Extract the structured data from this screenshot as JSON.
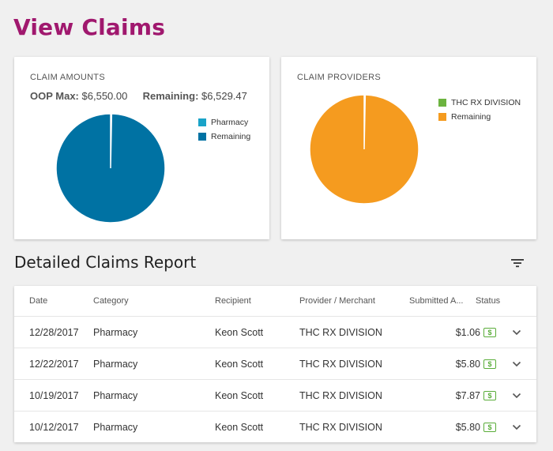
{
  "page": {
    "title": "View Claims"
  },
  "claim_amounts": {
    "label": "CLAIM AMOUNTS",
    "oop_label": "OOP Max:",
    "oop_value": "$6,550.00",
    "remaining_label": "Remaining:",
    "remaining_value": "$6,529.47",
    "legend": [
      {
        "label": "Pharmacy",
        "color": "#1aa3c8"
      },
      {
        "label": "Remaining",
        "color": "#0072a3"
      }
    ],
    "slices": [
      {
        "label": "Pharmacy",
        "value": 20.53,
        "color": "#1aa3c8"
      },
      {
        "label": "Remaining",
        "value": 6529.47,
        "color": "#0072a3"
      }
    ]
  },
  "claim_providers": {
    "label": "CLAIM PROVIDERS",
    "legend": [
      {
        "label": "THC RX DIVISION",
        "color": "#6cb33f"
      },
      {
        "label": "Remaining",
        "color": "#f59b1f"
      }
    ],
    "slices": [
      {
        "label": "THC RX DIVISION",
        "value": 20.53,
        "color": "#6cb33f"
      },
      {
        "label": "Remaining",
        "value": 6529.47,
        "color": "#f59b1f"
      }
    ]
  },
  "report": {
    "title": "Detailed Claims Report",
    "columns": [
      "Date",
      "Category",
      "Recipient",
      "Provider / Merchant",
      "Submitted A...",
      "Status"
    ],
    "status_icon": "dollar-bill-icon",
    "rows": [
      {
        "date": "12/28/2017",
        "category": "Pharmacy",
        "recipient": "Keon Scott",
        "provider": "THC RX DIVISION",
        "amount": "$1.06"
      },
      {
        "date": "12/22/2017",
        "category": "Pharmacy",
        "recipient": "Keon Scott",
        "provider": "THC RX DIVISION",
        "amount": "$5.80"
      },
      {
        "date": "10/19/2017",
        "category": "Pharmacy",
        "recipient": "Keon Scott",
        "provider": "THC RX DIVISION",
        "amount": "$7.87"
      },
      {
        "date": "10/12/2017",
        "category": "Pharmacy",
        "recipient": "Keon Scott",
        "provider": "THC RX DIVISION",
        "amount": "$5.80"
      }
    ]
  },
  "colors": {
    "title": "#a0186e",
    "status_green": "#5aad3a"
  }
}
